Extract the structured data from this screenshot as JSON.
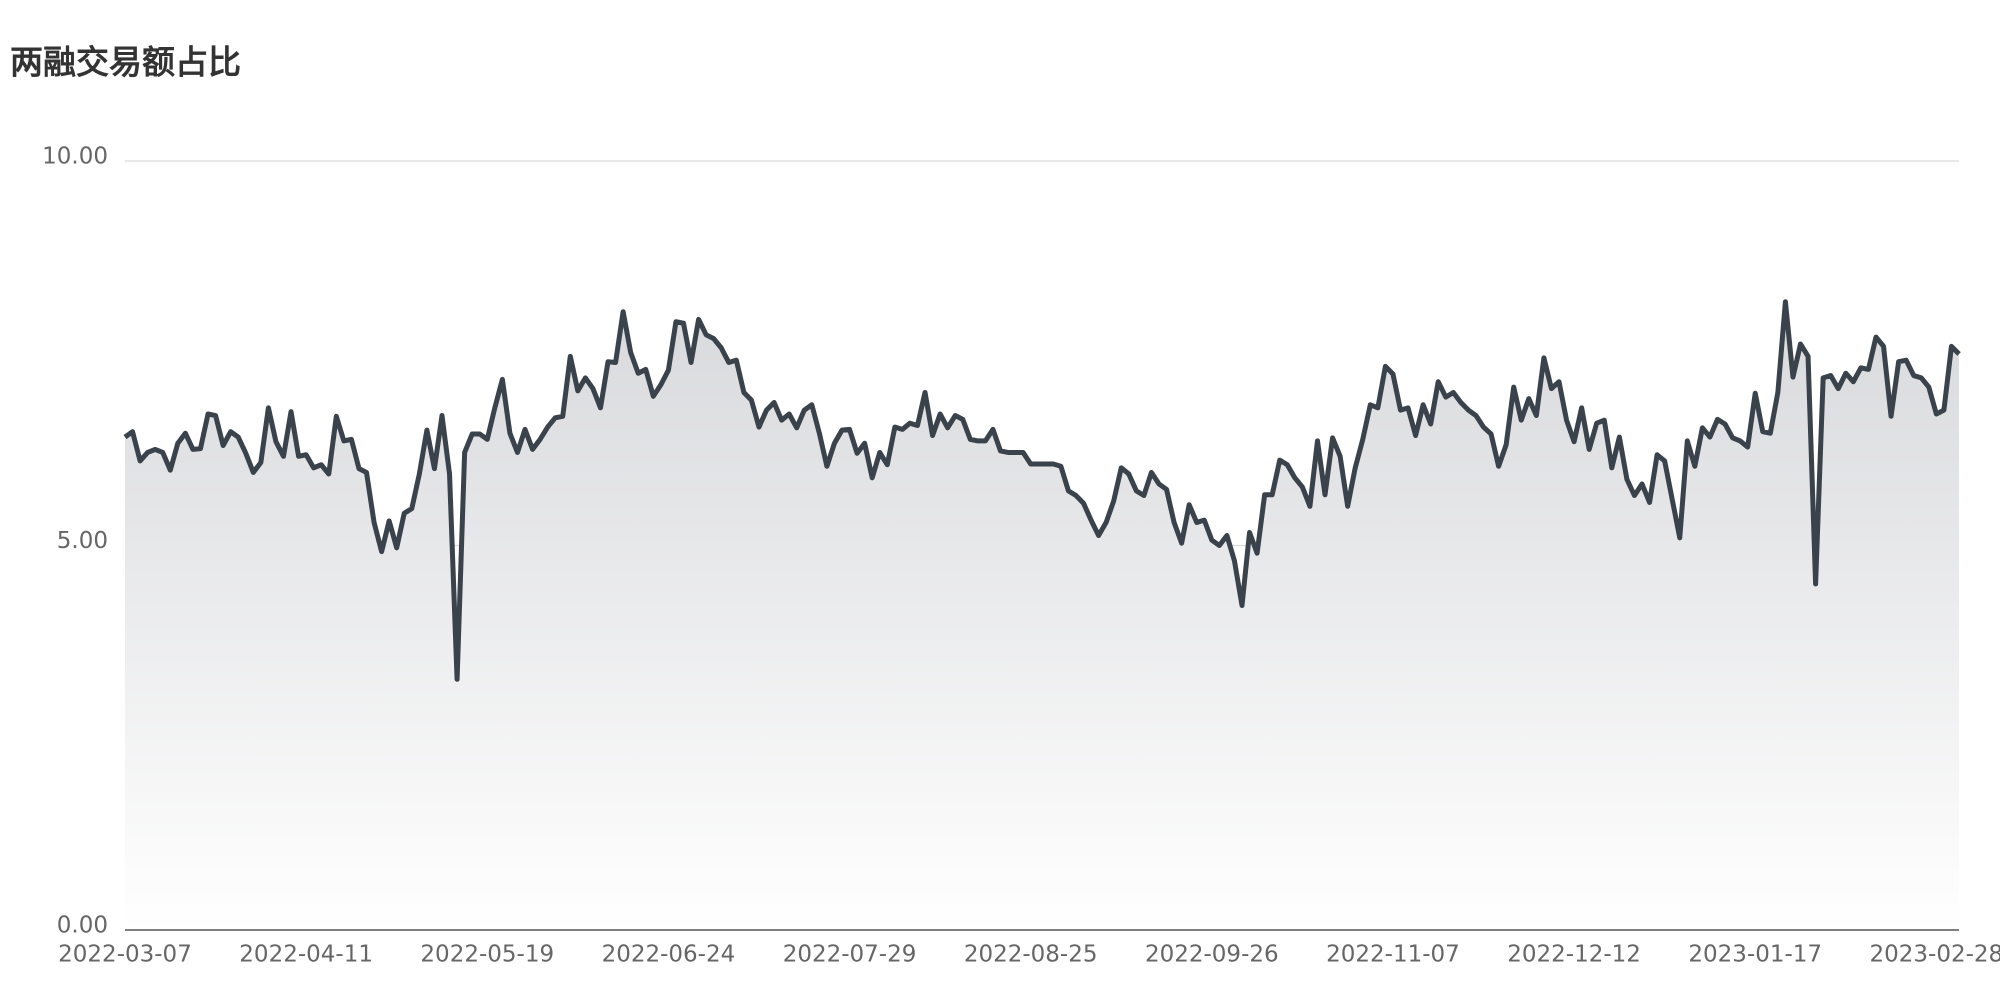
{
  "chart_data": {
    "type": "line",
    "title": "两融交易额占比",
    "color": "#3a424c",
    "area": true,
    "grid": true,
    "ylim": [
      0,
      10
    ],
    "yticks": [
      {
        "value": 0,
        "label": "0.00"
      },
      {
        "value": 5,
        "label": "5.00"
      },
      {
        "value": 10,
        "label": "10.00"
      }
    ],
    "categories": [
      "2022-03-07",
      null,
      null,
      null,
      null,
      null,
      null,
      null,
      null,
      null,
      null,
      null,
      null,
      null,
      null,
      null,
      null,
      null,
      null,
      null,
      null,
      null,
      null,
      null,
      "2022-04-11",
      null,
      null,
      null,
      null,
      null,
      null,
      null,
      null,
      null,
      null,
      null,
      null,
      null,
      null,
      null,
      null,
      null,
      null,
      null,
      null,
      null,
      null,
      null,
      "2022-05-19",
      null,
      null,
      null,
      null,
      null,
      null,
      null,
      null,
      null,
      null,
      null,
      null,
      null,
      null,
      null,
      null,
      null,
      null,
      null,
      null,
      null,
      null,
      null,
      "2022-06-24",
      null,
      null,
      null,
      null,
      null,
      null,
      null,
      null,
      null,
      null,
      null,
      null,
      null,
      null,
      null,
      null,
      null,
      null,
      null,
      null,
      null,
      null,
      null,
      "2022-07-29",
      null,
      null,
      null,
      null,
      null,
      null,
      null,
      null,
      null,
      null,
      null,
      null,
      null,
      null,
      null,
      null,
      null,
      null,
      null,
      null,
      null,
      null,
      null,
      "2022-08-25",
      null,
      null,
      null,
      null,
      null,
      null,
      null,
      null,
      null,
      null,
      null,
      null,
      null,
      null,
      null,
      null,
      null,
      null,
      null,
      null,
      null,
      null,
      null,
      "2022-09-26",
      null,
      null,
      null,
      null,
      null,
      null,
      null,
      null,
      null,
      null,
      null,
      null,
      null,
      null,
      null,
      null,
      null,
      null,
      null,
      null,
      null,
      null,
      null,
      "2022-11-07",
      null,
      null,
      null,
      null,
      null,
      null,
      null,
      null,
      null,
      null,
      null,
      null,
      null,
      null,
      null,
      null,
      null,
      null,
      null,
      null,
      null,
      null,
      null,
      "2022-12-12",
      null,
      null,
      null,
      null,
      null,
      null,
      null,
      null,
      null,
      null,
      null,
      null,
      null,
      null,
      null,
      null,
      null,
      null,
      null,
      null,
      null,
      null,
      null,
      "2023-01-17",
      null,
      null,
      null,
      null,
      null,
      null,
      null,
      null,
      null,
      null,
      null,
      null,
      null,
      null,
      null,
      null,
      null,
      null,
      null,
      null,
      null,
      null,
      null,
      "2023-02-28",
      null,
      null,
      null
    ],
    "values": [
      6.41,
      6.48,
      6.1,
      6.21,
      6.25,
      6.21,
      5.98,
      6.33,
      6.46,
      6.25,
      6.26,
      6.71,
      6.69,
      6.3,
      6.48,
      6.41,
      6.2,
      5.95,
      6.08,
      6.79,
      6.35,
      6.16,
      6.74,
      6.16,
      6.18,
      6.01,
      6.05,
      5.93,
      6.68,
      6.36,
      6.38,
      6.0,
      5.95,
      5.3,
      4.92,
      5.32,
      4.97,
      5.42,
      5.48,
      5.93,
      6.5,
      6.0,
      6.69,
      5.93,
      3.26,
      6.21,
      6.45,
      6.45,
      6.38,
      6.79,
      7.16,
      6.46,
      6.21,
      6.51,
      6.25,
      6.38,
      6.54,
      6.66,
      6.68,
      7.46,
      7.01,
      7.18,
      7.04,
      6.79,
      7.39,
      7.38,
      8.04,
      7.51,
      7.24,
      7.29,
      6.94,
      7.09,
      7.28,
      7.91,
      7.89,
      7.38,
      7.94,
      7.74,
      7.69,
      7.57,
      7.38,
      7.41,
      6.99,
      6.89,
      6.54,
      6.76,
      6.86,
      6.63,
      6.71,
      6.53,
      6.76,
      6.83,
      6.46,
      6.03,
      6.33,
      6.5,
      6.51,
      6.2,
      6.33,
      5.88,
      6.21,
      6.05,
      6.54,
      6.51,
      6.59,
      6.56,
      6.99,
      6.43,
      6.71,
      6.53,
      6.69,
      6.64,
      6.38,
      6.36,
      6.36,
      6.51,
      6.23,
      6.21,
      6.21,
      6.21,
      6.06,
      6.06,
      6.06,
      6.06,
      6.03,
      5.71,
      5.65,
      5.55,
      5.33,
      5.13,
      5.3,
      5.58,
      6.01,
      5.93,
      5.71,
      5.65,
      5.95,
      5.8,
      5.73,
      5.3,
      5.03,
      5.53,
      5.3,
      5.33,
      5.07,
      5.0,
      5.13,
      4.8,
      4.22,
      5.17,
      4.9,
      5.66,
      5.66,
      6.11,
      6.05,
      5.88,
      5.76,
      5.51,
      6.36,
      5.66,
      6.4,
      6.16,
      5.51,
      6.01,
      6.38,
      6.83,
      6.79,
      7.33,
      7.23,
      6.76,
      6.79,
      6.43,
      6.83,
      6.58,
      7.13,
      6.93,
      6.99,
      6.86,
      6.76,
      6.69,
      6.54,
      6.45,
      6.03,
      6.31,
      7.06,
      6.63,
      6.91,
      6.69,
      7.44,
      7.04,
      7.13,
      6.63,
      6.35,
      6.79,
      6.25,
      6.59,
      6.63,
      6.01,
      6.41,
      5.86,
      5.65,
      5.8,
      5.56,
      6.18,
      6.1,
      5.6,
      5.1,
      6.36,
      6.03,
      6.53,
      6.41,
      6.64,
      6.58,
      6.4,
      6.36,
      6.28,
      6.98,
      6.48,
      6.46,
      6.99,
      8.17,
      7.19,
      7.62,
      7.46,
      4.5,
      7.18,
      7.21,
      7.04,
      7.24,
      7.13,
      7.31,
      7.29,
      7.71,
      7.59,
      6.68,
      7.39,
      7.41,
      7.21,
      7.18,
      7.06,
      6.71,
      6.76,
      7.59,
      7.49
    ]
  }
}
